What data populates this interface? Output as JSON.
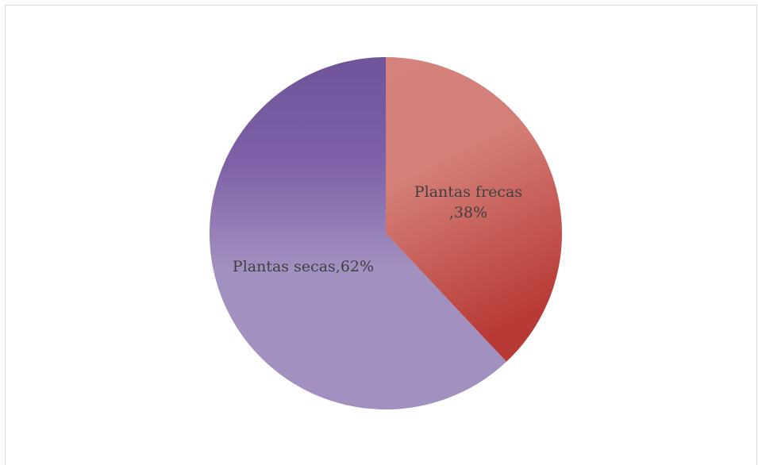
{
  "chart_data": {
    "type": "pie",
    "title": "",
    "slices": [
      {
        "label": "Plantas frecas",
        "value": 38,
        "label_lines": [
          "Plantas frecas",
          ",38%"
        ],
        "color_light": "#d5827c",
        "color_dark": "#b83a36"
      },
      {
        "label": "Plantas secas",
        "value": 62,
        "label_lines": [
          "Plantas secas,62%"
        ],
        "color_light": "#a290c0",
        "color_dark": "#6f5499"
      }
    ],
    "legend": false
  }
}
